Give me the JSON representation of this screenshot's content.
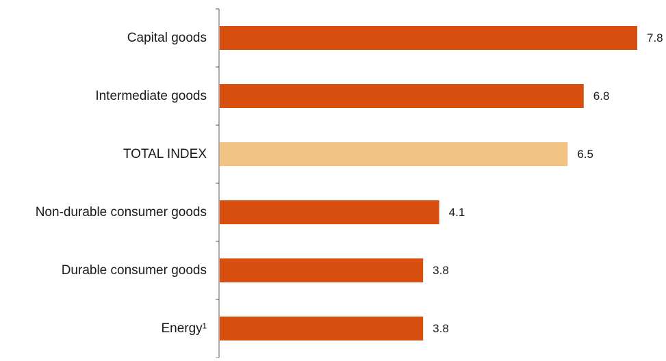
{
  "chart_data": {
    "type": "bar",
    "orientation": "horizontal",
    "categories": [
      "Capital goods",
      "Intermediate goods",
      "TOTAL INDEX",
      "Non-durable consumer goods",
      "Durable consumer goods",
      "Energy¹"
    ],
    "values": [
      7.8,
      6.8,
      6.5,
      4.1,
      3.8,
      3.8
    ],
    "value_labels": [
      "7.8",
      "6.8",
      "6.5",
      "4.1",
      "3.8",
      "3.8"
    ],
    "highlight_category": "TOTAL INDEX",
    "xlim": [
      0,
      7.8
    ],
    "grid": false,
    "legend": "none",
    "title": "",
    "xlabel": "",
    "ylabel": ""
  },
  "colors": {
    "bar": "#d84f10",
    "highlight_bar": "#f3c384",
    "axis": "#555555",
    "text": "#1a1a1a"
  }
}
